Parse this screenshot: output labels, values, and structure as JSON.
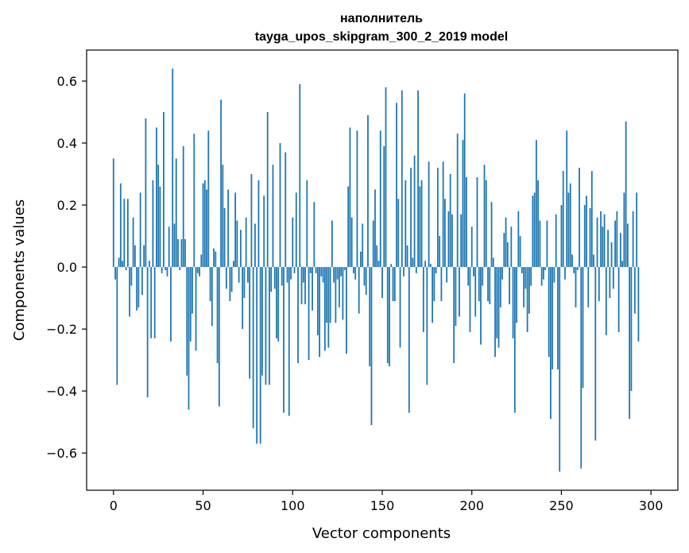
{
  "chart_data": {
    "type": "bar",
    "title_line1": "наполнитель",
    "title_line2": "tayga_upos_skipgram_300_2_2019 model",
    "xlabel": "Vector components",
    "ylabel": "Components values",
    "xlim": [
      -15,
      315
    ],
    "ylim": [
      -0.72,
      0.7
    ],
    "xticks": [
      0,
      50,
      100,
      150,
      200,
      250,
      300
    ],
    "xtick_labels": [
      "0",
      "50",
      "100",
      "150",
      "200",
      "250",
      "300"
    ],
    "yticks": [
      -0.6,
      -0.4,
      -0.2,
      0.0,
      0.2,
      0.4,
      0.6
    ],
    "ytick_labels": [
      "−0.6",
      "−0.4",
      "−0.2",
      "0.0",
      "0.2",
      "0.4",
      "0.6"
    ],
    "bar_color": "#1f77b4",
    "values": [
      0.35,
      -0.04,
      -0.38,
      0.03,
      0.27,
      0.02,
      0.22,
      -0.01,
      0.22,
      -0.16,
      -0.06,
      0.16,
      0.07,
      -0.14,
      -0.13,
      0.24,
      -0.09,
      0.07,
      0.48,
      -0.42,
      0.02,
      -0.23,
      0.28,
      -0.23,
      0.45,
      0.33,
      0.26,
      -0.02,
      0.5,
      -0.01,
      -0.03,
      0.13,
      -0.24,
      0.64,
      0.14,
      0.35,
      0.09,
      -0.01,
      0.09,
      0.39,
      0.09,
      -0.35,
      -0.46,
      -0.24,
      -0.15,
      0.43,
      -0.27,
      -0.02,
      -0.03,
      0.04,
      0.27,
      0.28,
      0.25,
      0.44,
      -0.11,
      -0.19,
      0.06,
      0.05,
      -0.31,
      -0.45,
      0.54,
      0.33,
      0.19,
      -0.07,
      0.25,
      -0.11,
      -0.08,
      0.02,
      0.24,
      0.15,
      -0.05,
      0.12,
      -0.2,
      -0.1,
      0.16,
      -0.05,
      -0.36,
      0.3,
      -0.52,
      0.14,
      -0.57,
      0.28,
      -0.57,
      -0.35,
      0.23,
      -0.38,
      0.5,
      -0.38,
      -0.08,
      0.33,
      -0.07,
      -0.23,
      -0.24,
      0.4,
      -0.06,
      -0.47,
      0.37,
      -0.05,
      -0.48,
      -0.04,
      0.16,
      -0.02,
      0.24,
      -0.31,
      0.59,
      -0.12,
      -0.05,
      -0.12,
      0.28,
      -0.3,
      -0.02,
      -0.14,
      0.21,
      -0.02,
      -0.22,
      -0.29,
      -0.03,
      -0.05,
      -0.27,
      -0.18,
      -0.26,
      -0.18,
      0.15,
      -0.05,
      -0.18,
      -0.04,
      -0.13,
      -0.03,
      -0.17,
      -0.01,
      -0.28,
      0.26,
      0.45,
      0.16,
      -0.02,
      -0.04,
      0.44,
      -0.15,
      0.05,
      0.14,
      -0.06,
      -0.09,
      0.49,
      -0.32,
      -0.51,
      0.15,
      0.25,
      0.07,
      0.02,
      0.44,
      -0.1,
      0.39,
      0.58,
      -0.31,
      -0.32,
      0.01,
      -0.11,
      -0.11,
      0.53,
      0.22,
      -0.26,
      0.57,
      -0.03,
      0.28,
      0.07,
      -0.47,
      0.32,
      0.03,
      0.36,
      -0.02,
      0.57,
      0.26,
      0.28,
      -0.21,
      0.02,
      -0.38,
      0.34,
      0.01,
      -0.18,
      -0.11,
      -0.02,
      0.32,
      0.1,
      -0.11,
      0.34,
      0.22,
      -0.05,
      0.18,
      0.3,
      0.17,
      -0.31,
      -0.19,
      0.43,
      -0.16,
      0.17,
      0.41,
      0.56,
      0.29,
      -0.06,
      -0.21,
      0.13,
      -0.03,
      -0.16,
      0.29,
      -0.11,
      -0.25,
      -0.06,
      0.33,
      0.28,
      -0.11,
      -0.12,
      0.21,
      0.03,
      -0.29,
      -0.23,
      -0.26,
      -0.13,
      -0.04,
      0.11,
      0.16,
      0.08,
      -0.12,
      0.13,
      -0.23,
      -0.47,
      -0.18,
      0.18,
      0.1,
      -0.02,
      -0.13,
      -0.07,
      -0.21,
      -0.15,
      -0.06,
      0.23,
      0.24,
      0.41,
      0.28,
      0.15,
      -0.06,
      -0.04,
      -0.01,
      0.15,
      -0.29,
      -0.49,
      -0.33,
      -0.05,
      0.17,
      -0.33,
      -0.66,
      0.2,
      0.31,
      -0.04,
      0.44,
      0.24,
      0.27,
      0.04,
      -0.02,
      -0.13,
      -0.01,
      0.32,
      -0.65,
      -0.39,
      0.2,
      0.23,
      -0.13,
      0.19,
      0.31,
      0.04,
      -0.56,
      0.16,
      -0.11,
      0.18,
      0.13,
      0.17,
      -0.22,
      0.12,
      -0.1,
      0.08,
      -0.07,
      0.15,
      0.18,
      -0.21,
      0.11,
      0.02,
      0.24,
      0.47,
      0.14,
      -0.49,
      -0.4,
      0.18,
      -0.15,
      0.24,
      -0.24
    ]
  }
}
